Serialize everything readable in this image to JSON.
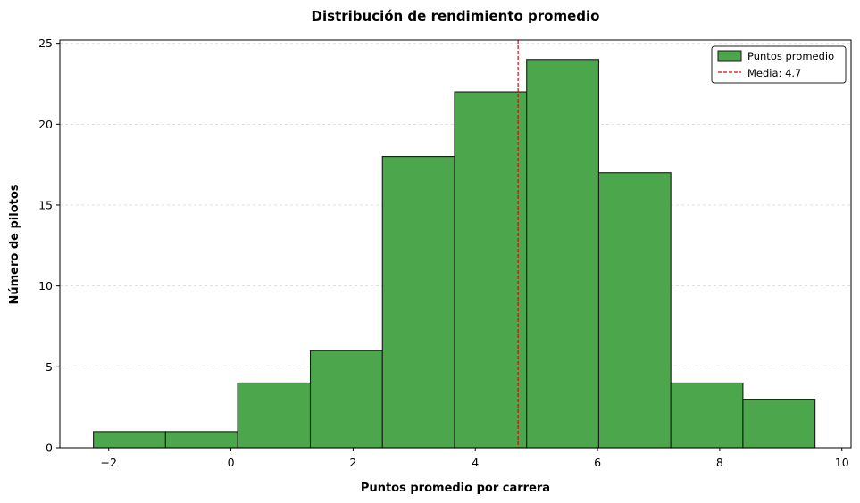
{
  "chart_data": {
    "type": "bar",
    "subtype": "histogram",
    "title": "Distribución de rendimiento promedio",
    "xlabel": "Puntos promedio por carrera",
    "ylabel": "Número de pilotos",
    "xlim": [
      -2.8,
      10.15
    ],
    "ylim": [
      0,
      25.2
    ],
    "xticks": [
      -2,
      0,
      2,
      4,
      6,
      8,
      10
    ],
    "yticks": [
      0,
      5,
      10,
      15,
      20,
      25
    ],
    "grid": "y-dashed",
    "legend_position": "top-right",
    "series": [
      {
        "name": "Puntos promedio",
        "color": "#4ca64c",
        "edge_color": "#1a1a1a",
        "bin_edges": [
          -2.25,
          -1.07,
          0.11,
          1.3,
          2.48,
          3.66,
          4.84,
          6.02,
          7.2,
          8.38,
          9.56
        ],
        "values": [
          1,
          1,
          4,
          6,
          18,
          22,
          24,
          17,
          4,
          3
        ]
      }
    ],
    "reference_line": {
      "label": "Media: 4.7",
      "x": 4.7,
      "color": "#e8000b",
      "style": "dashed"
    }
  }
}
